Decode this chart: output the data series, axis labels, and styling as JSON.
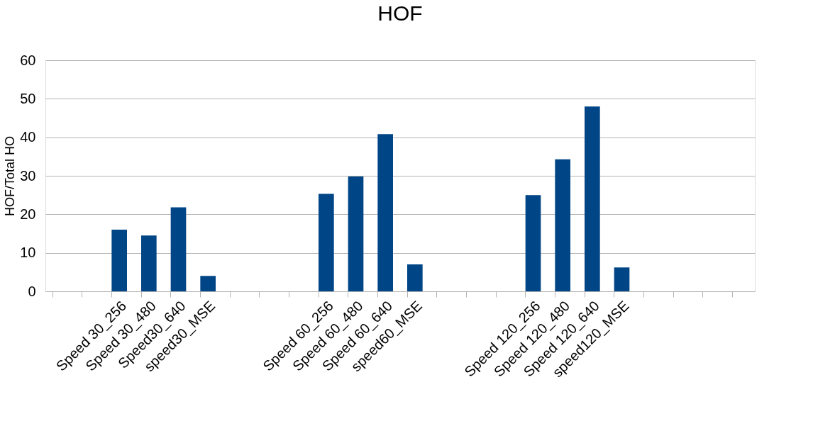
{
  "chart_data": {
    "type": "bar",
    "title": "HOF",
    "ylabel": "HOF/Total HO",
    "categories": [
      null,
      null,
      "Speed 30_256",
      "Speed 30_480",
      "Speed30_640",
      "speed30_MSE",
      null,
      null,
      null,
      "Speed 60_256",
      "Speed 60_480",
      "Speed 60_640",
      "speed60_MSE",
      null,
      null,
      null,
      "Speed 120_256",
      "Speed 120_480",
      "Speed 120_640",
      "speed120_MSE",
      null,
      null,
      null,
      null
    ],
    "values": [
      null,
      null,
      16,
      14.5,
      21.8,
      4,
      null,
      null,
      null,
      25.3,
      29.8,
      40.8,
      7,
      null,
      null,
      null,
      25,
      34.3,
      48,
      6.2,
      null,
      null,
      null,
      null
    ],
    "color": "#004586",
    "ylim": [
      0,
      60
    ],
    "yticks": [
      0,
      10,
      20,
      30,
      40,
      50,
      60
    ],
    "grid": "y"
  }
}
